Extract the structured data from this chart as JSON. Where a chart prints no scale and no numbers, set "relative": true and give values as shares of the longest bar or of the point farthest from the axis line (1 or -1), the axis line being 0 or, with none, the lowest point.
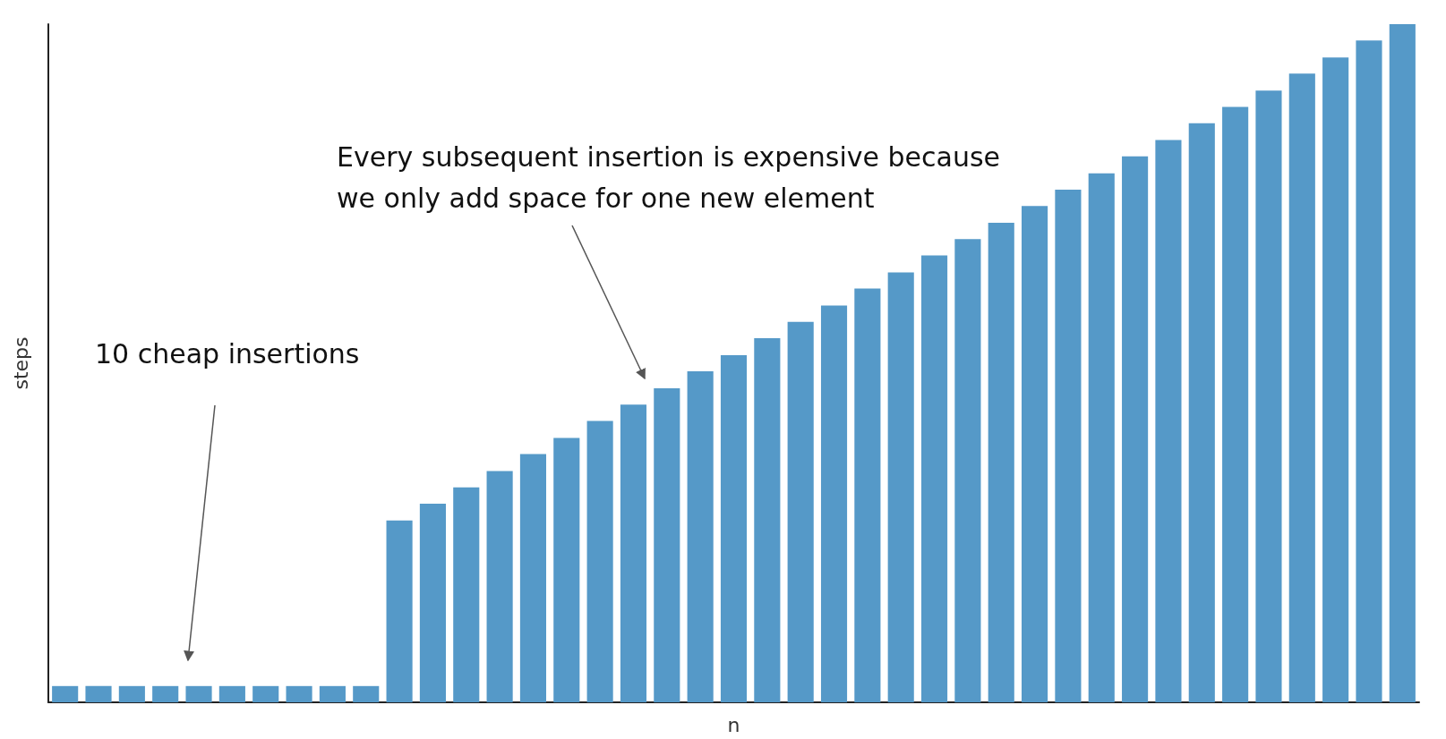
{
  "chart_data": {
    "type": "bar",
    "xlabel": "n",
    "ylabel": "steps",
    "relative": true,
    "categories": [
      null,
      null,
      null,
      null,
      null,
      null,
      null,
      null,
      null,
      null,
      null,
      null,
      null,
      null,
      null,
      null,
      null,
      null,
      null,
      null,
      null,
      null,
      null,
      null,
      null,
      null,
      null,
      null,
      null,
      null,
      null,
      null,
      null,
      null,
      null,
      null,
      null,
      null,
      null,
      null,
      null
    ],
    "values": [
      0.024,
      0.024,
      0.024,
      0.024,
      0.024,
      0.024,
      0.024,
      0.024,
      0.024,
      0.024,
      0.268,
      0.293,
      0.317,
      0.341,
      0.366,
      0.39,
      0.415,
      0.439,
      0.463,
      0.488,
      0.512,
      0.537,
      0.561,
      0.585,
      0.61,
      0.634,
      0.659,
      0.683,
      0.707,
      0.732,
      0.756,
      0.78,
      0.805,
      0.829,
      0.854,
      0.878,
      0.902,
      0.927,
      0.951,
      0.976,
      1
    ],
    "color": "#5599c8",
    "annotations": [
      "10 cheap insertions",
      "Every subsequent insertion is expensive because\nwe only add space for one new element"
    ],
    "grid": false
  }
}
